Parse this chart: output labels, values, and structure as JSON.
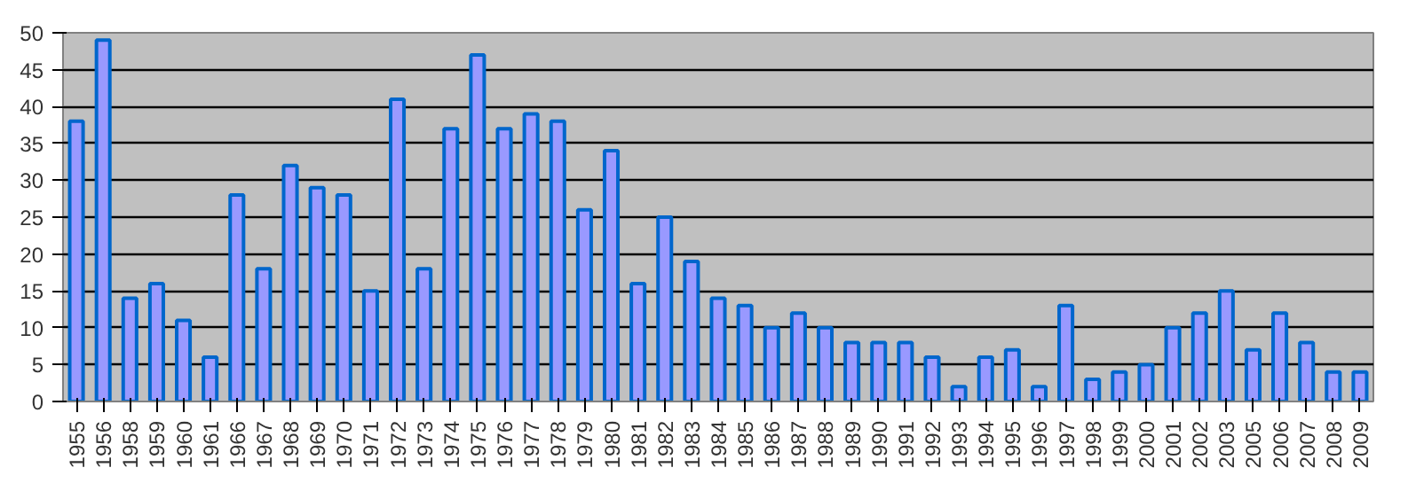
{
  "chart_data": {
    "type": "bar",
    "categories": [
      "1955",
      "1956",
      "1958",
      "1959",
      "1960",
      "1961",
      "1966",
      "1967",
      "1968",
      "1969",
      "1970",
      "1971",
      "1972",
      "1973",
      "1974",
      "1975",
      "1976",
      "1977",
      "1978",
      "1979",
      "1980",
      "1981",
      "1982",
      "1983",
      "1984",
      "1985",
      "1986",
      "1987",
      "1988",
      "1989",
      "1990",
      "1991",
      "1992",
      "1993",
      "1994",
      "1995",
      "1996",
      "1997",
      "1998",
      "1999",
      "2000",
      "2001",
      "2002",
      "2003",
      "2005",
      "2006",
      "2007",
      "2008",
      "2009"
    ],
    "values": [
      38,
      49,
      14,
      16,
      11,
      6,
      28,
      18,
      32,
      29,
      28,
      15,
      41,
      18,
      37,
      47,
      37,
      39,
      38,
      26,
      34,
      16,
      25,
      19,
      14,
      13,
      10,
      12,
      10,
      8,
      8,
      8,
      6,
      2,
      6,
      7,
      2,
      13,
      3,
      4,
      5,
      10,
      12,
      15,
      7,
      12,
      8,
      4,
      4
    ],
    "color": "#9999ff",
    "ylim": [
      0,
      50
    ],
    "yticks": [
      0,
      5,
      10,
      15,
      20,
      25,
      30,
      35,
      40,
      45,
      50
    ],
    "grid": "y"
  }
}
